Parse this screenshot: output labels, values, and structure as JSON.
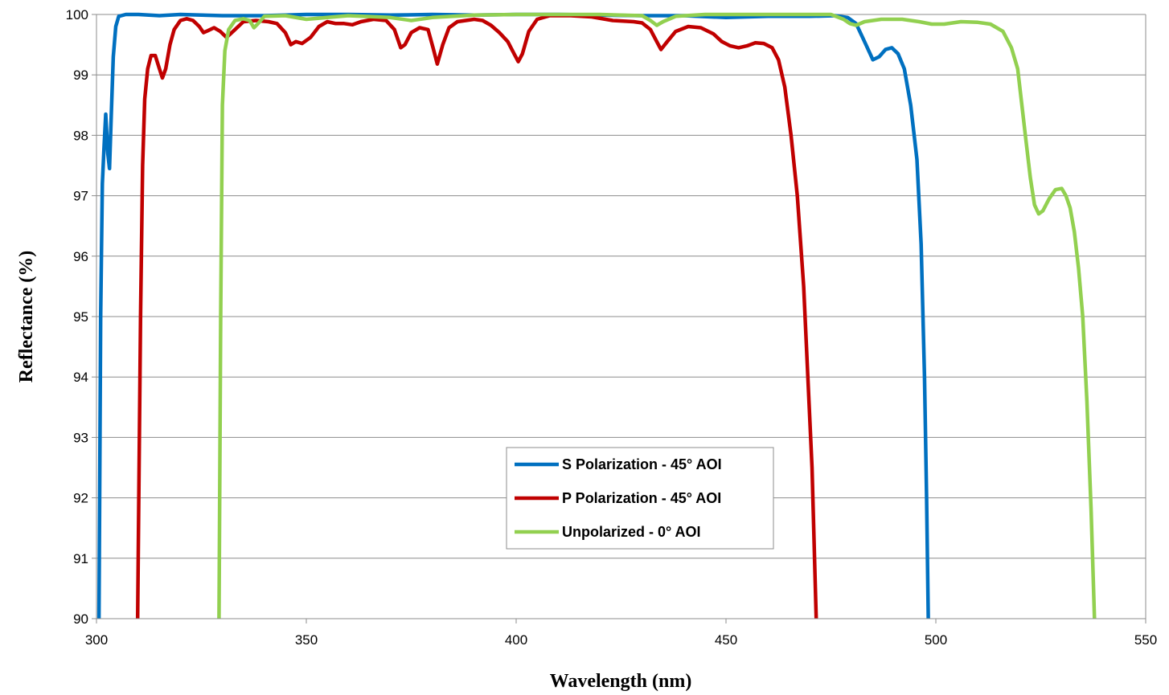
{
  "chart_data": {
    "type": "line",
    "title": "",
    "xlabel": "Wavelength (nm)",
    "ylabel": "Reflectance (%)",
    "xlim": [
      300,
      550
    ],
    "ylim": [
      90,
      100
    ],
    "xticks": [
      "300",
      "350",
      "400",
      "450",
      "500",
      "550"
    ],
    "yticks": [
      "90",
      "91",
      "92",
      "93",
      "94",
      "95",
      "96",
      "97",
      "98",
      "99",
      "100"
    ],
    "grid": "horizontal",
    "legend_position": "bottom-center",
    "series": [
      {
        "name": "S Polarization - 45° AOI",
        "color": "#0070C0",
        "points": [
          [
            300.6,
            90
          ],
          [
            301,
            95
          ],
          [
            301.4,
            97.2
          ],
          [
            301.8,
            97.8
          ],
          [
            302.2,
            98.35
          ],
          [
            302.7,
            97.7
          ],
          [
            303.1,
            97.45
          ],
          [
            303.5,
            98.3
          ],
          [
            304,
            99.3
          ],
          [
            304.6,
            99.8
          ],
          [
            305.3,
            99.97
          ],
          [
            307,
            100
          ],
          [
            310,
            100
          ],
          [
            315,
            99.98
          ],
          [
            320,
            100
          ],
          [
            330,
            99.98
          ],
          [
            340,
            99.98
          ],
          [
            350,
            100
          ],
          [
            360,
            100
          ],
          [
            370,
            99.99
          ],
          [
            380,
            100
          ],
          [
            390,
            99.99
          ],
          [
            400,
            100
          ],
          [
            410,
            100
          ],
          [
            420,
            99.99
          ],
          [
            430,
            99.98
          ],
          [
            440,
            99.98
          ],
          [
            450,
            99.95
          ],
          [
            460,
            99.97
          ],
          [
            470,
            99.97
          ],
          [
            476,
            99.98
          ],
          [
            479,
            99.95
          ],
          [
            481,
            99.85
          ],
          [
            483,
            99.55
          ],
          [
            485,
            99.25
          ],
          [
            486.5,
            99.3
          ],
          [
            488,
            99.42
          ],
          [
            489.5,
            99.45
          ],
          [
            491,
            99.35
          ],
          [
            492.5,
            99.1
          ],
          [
            494,
            98.5
          ],
          [
            495.5,
            97.6
          ],
          [
            496.5,
            96.2
          ],
          [
            497.3,
            94
          ],
          [
            497.8,
            92
          ],
          [
            498.2,
            90
          ]
        ]
      },
      {
        "name": "P Polarization - 45° AOI",
        "color": "#C00000",
        "points": [
          [
            309.8,
            90
          ],
          [
            310.5,
            95
          ],
          [
            311,
            97.5
          ],
          [
            311.5,
            98.6
          ],
          [
            312.2,
            99.1
          ],
          [
            313,
            99.32
          ],
          [
            314,
            99.32
          ],
          [
            315,
            99.1
          ],
          [
            315.7,
            98.95
          ],
          [
            316.5,
            99.1
          ],
          [
            317.5,
            99.5
          ],
          [
            318.5,
            99.75
          ],
          [
            320,
            99.9
          ],
          [
            321.5,
            99.93
          ],
          [
            323,
            99.9
          ],
          [
            324.5,
            99.8
          ],
          [
            325.5,
            99.7
          ],
          [
            326.5,
            99.73
          ],
          [
            328,
            99.78
          ],
          [
            329.5,
            99.72
          ],
          [
            331,
            99.62
          ],
          [
            333,
            99.75
          ],
          [
            335,
            99.88
          ],
          [
            338,
            99.9
          ],
          [
            341,
            99.88
          ],
          [
            343,
            99.85
          ],
          [
            345,
            99.7
          ],
          [
            346.3,
            99.5
          ],
          [
            347.5,
            99.55
          ],
          [
            349,
            99.52
          ],
          [
            351,
            99.62
          ],
          [
            353,
            99.8
          ],
          [
            355,
            99.88
          ],
          [
            357,
            99.85
          ],
          [
            359,
            99.85
          ],
          [
            361,
            99.83
          ],
          [
            363,
            99.88
          ],
          [
            366,
            99.92
          ],
          [
            369,
            99.9
          ],
          [
            371,
            99.75
          ],
          [
            372.5,
            99.45
          ],
          [
            373.5,
            99.5
          ],
          [
            375,
            99.7
          ],
          [
            377,
            99.78
          ],
          [
            379,
            99.75
          ],
          [
            380.2,
            99.45
          ],
          [
            381.2,
            99.18
          ],
          [
            382.5,
            99.5
          ],
          [
            384,
            99.78
          ],
          [
            386,
            99.88
          ],
          [
            388,
            99.9
          ],
          [
            390,
            99.92
          ],
          [
            392,
            99.9
          ],
          [
            394,
            99.82
          ],
          [
            396,
            99.7
          ],
          [
            398,
            99.55
          ],
          [
            399.5,
            99.35
          ],
          [
            400.5,
            99.22
          ],
          [
            401.5,
            99.35
          ],
          [
            403,
            99.72
          ],
          [
            405,
            99.92
          ],
          [
            408,
            99.98
          ],
          [
            413,
            99.98
          ],
          [
            418,
            99.96
          ],
          [
            423,
            99.9
          ],
          [
            428,
            99.88
          ],
          [
            430,
            99.86
          ],
          [
            432,
            99.75
          ],
          [
            433.5,
            99.55
          ],
          [
            434.5,
            99.42
          ],
          [
            436,
            99.55
          ],
          [
            438,
            99.72
          ],
          [
            441,
            99.8
          ],
          [
            444,
            99.78
          ],
          [
            447,
            99.68
          ],
          [
            449,
            99.55
          ],
          [
            451,
            99.48
          ],
          [
            453,
            99.45
          ],
          [
            455,
            99.48
          ],
          [
            457,
            99.53
          ],
          [
            459,
            99.52
          ],
          [
            461,
            99.45
          ],
          [
            462.5,
            99.25
          ],
          [
            464,
            98.8
          ],
          [
            465.5,
            98
          ],
          [
            467,
            97
          ],
          [
            468.5,
            95.5
          ],
          [
            469.5,
            94
          ],
          [
            470.5,
            92.5
          ],
          [
            471.5,
            90
          ]
        ]
      },
      {
        "name": "Unpolarized - 0° AOI",
        "color": "#92D050",
        "points": [
          [
            329.2,
            90
          ],
          [
            329.6,
            95
          ],
          [
            330,
            98.5
          ],
          [
            330.6,
            99.4
          ],
          [
            331.5,
            99.75
          ],
          [
            333,
            99.9
          ],
          [
            335,
            99.93
          ],
          [
            336.5,
            99.9
          ],
          [
            337.5,
            99.78
          ],
          [
            338.5,
            99.85
          ],
          [
            340,
            99.97
          ],
          [
            345,
            99.98
          ],
          [
            350,
            99.92
          ],
          [
            355,
            99.95
          ],
          [
            360,
            99.98
          ],
          [
            370,
            99.95
          ],
          [
            375,
            99.9
          ],
          [
            380,
            99.95
          ],
          [
            390,
            99.99
          ],
          [
            400,
            100
          ],
          [
            410,
            100
          ],
          [
            420,
            100
          ],
          [
            430,
            99.98
          ],
          [
            432,
            99.9
          ],
          [
            433.5,
            99.82
          ],
          [
            435,
            99.88
          ],
          [
            438,
            99.97
          ],
          [
            445,
            100
          ],
          [
            455,
            100
          ],
          [
            465,
            100
          ],
          [
            475,
            100
          ],
          [
            478,
            99.92
          ],
          [
            479.5,
            99.85
          ],
          [
            481,
            99.82
          ],
          [
            483,
            99.88
          ],
          [
            487,
            99.92
          ],
          [
            492,
            99.92
          ],
          [
            496,
            99.88
          ],
          [
            499,
            99.84
          ],
          [
            502,
            99.84
          ],
          [
            506,
            99.88
          ],
          [
            510,
            99.87
          ],
          [
            513,
            99.84
          ],
          [
            516,
            99.72
          ],
          [
            518,
            99.45
          ],
          [
            519.5,
            99.1
          ],
          [
            520.5,
            98.5
          ],
          [
            521.5,
            97.9
          ],
          [
            522.5,
            97.3
          ],
          [
            523.5,
            96.85
          ],
          [
            524.5,
            96.7
          ],
          [
            525.5,
            96.75
          ],
          [
            527,
            96.95
          ],
          [
            528.5,
            97.1
          ],
          [
            530,
            97.12
          ],
          [
            531,
            97
          ],
          [
            532,
            96.8
          ],
          [
            533,
            96.4
          ],
          [
            534,
            95.8
          ],
          [
            535,
            95
          ],
          [
            536,
            93.6
          ],
          [
            537,
            91.8
          ],
          [
            537.8,
            90
          ]
        ]
      }
    ]
  }
}
